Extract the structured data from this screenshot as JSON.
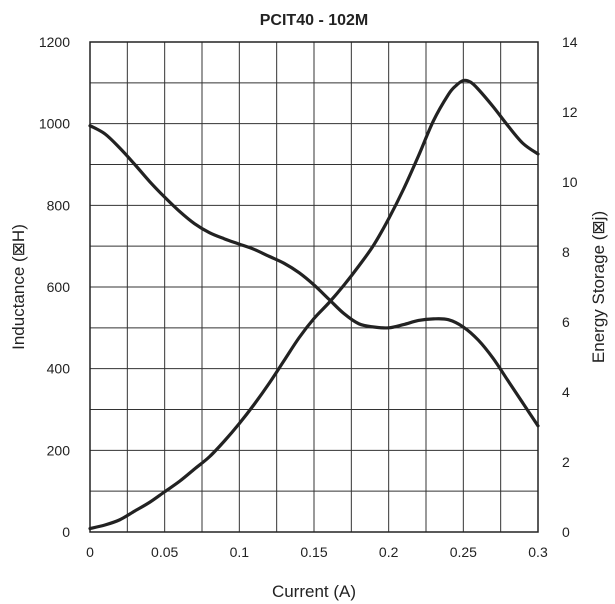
{
  "chart_data": {
    "type": "line",
    "title": "PCIT40 - 102M",
    "xlabel": "Current (A)",
    "ylabel_left": "Inductance (⊠H)",
    "ylabel_right": "Energy Storage (⊠j)",
    "xlim": [
      0,
      0.3
    ],
    "ylim_left": [
      0,
      1200
    ],
    "ylim_right": [
      0,
      14
    ],
    "x_ticks": [
      "0",
      "0.05",
      "0.1",
      "0.15",
      "0.2",
      "0.25",
      "0.3"
    ],
    "y_left_ticks": [
      "0",
      "200",
      "400",
      "600",
      "800",
      "1000",
      "1200"
    ],
    "y_right_ticks": [
      "0",
      "2",
      "4",
      "6",
      "8",
      "10",
      "12",
      "14"
    ],
    "grid": true,
    "line_color": "#222222",
    "series": [
      {
        "axis": "left",
        "x": [
          0,
          0.01,
          0.02,
          0.03,
          0.04,
          0.05,
          0.06,
          0.07,
          0.08,
          0.09,
          0.1,
          0.11,
          0.12,
          0.13,
          0.14,
          0.15,
          0.16,
          0.17,
          0.18,
          0.19,
          0.2,
          0.21,
          0.22,
          0.23,
          0.24,
          0.25,
          0.26,
          0.27,
          0.28,
          0.29,
          0.3
        ],
        "values": [
          995,
          975,
          940,
          900,
          858,
          820,
          785,
          755,
          733,
          718,
          705,
          692,
          675,
          658,
          635,
          605,
          570,
          535,
          510,
          502,
          500,
          508,
          518,
          522,
          520,
          502,
          470,
          425,
          370,
          315,
          260
        ]
      },
      {
        "axis": "right",
        "x": [
          0,
          0.01,
          0.02,
          0.03,
          0.04,
          0.05,
          0.06,
          0.07,
          0.08,
          0.09,
          0.1,
          0.11,
          0.12,
          0.13,
          0.14,
          0.15,
          0.16,
          0.17,
          0.18,
          0.19,
          0.2,
          0.21,
          0.22,
          0.23,
          0.24,
          0.245,
          0.25,
          0.255,
          0.26,
          0.27,
          0.28,
          0.29,
          0.3
        ],
        "values": [
          0.1,
          0.2,
          0.35,
          0.6,
          0.85,
          1.15,
          1.45,
          1.8,
          2.15,
          2.6,
          3.1,
          3.65,
          4.25,
          4.9,
          5.55,
          6.1,
          6.55,
          7.05,
          7.6,
          8.2,
          8.95,
          9.8,
          10.75,
          11.75,
          12.5,
          12.75,
          12.9,
          12.85,
          12.65,
          12.15,
          11.6,
          11.1,
          10.8
        ]
      }
    ]
  }
}
